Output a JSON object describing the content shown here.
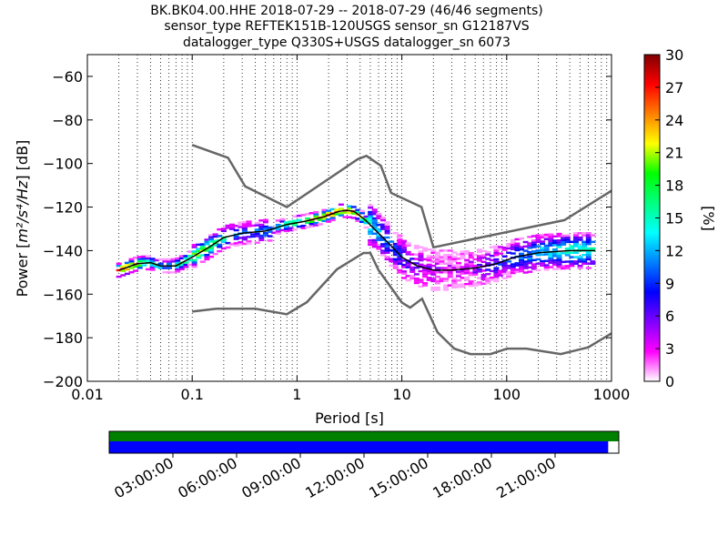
{
  "chart_data": {
    "type": "heatmap",
    "title_lines": [
      "BK.BK04.00.HHE   2018-07-29 -- 2018-07-29  (46/46 segments)",
      "sensor_type REFTEK151B-120USGS sensor_sn G12187VS",
      "datalogger_type Q330S+USGS datalogger_sn 6073"
    ],
    "xlabel": "Period [s]",
    "ylabel_prefix": "Power [",
    "ylabel_unit": "m²/s⁴/Hz",
    "ylabel_suffix": "] [dB]",
    "x_scale": "log",
    "xlim": [
      0.01,
      1000
    ],
    "ylim": [
      -200,
      -50
    ],
    "x_ticks": [
      {
        "value": 0.01,
        "label": "0.01"
      },
      {
        "value": 0.1,
        "label": "0.1"
      },
      {
        "value": 1,
        "label": "1"
      },
      {
        "value": 10,
        "label": "10"
      },
      {
        "value": 100,
        "label": "100"
      },
      {
        "value": 1000,
        "label": "1000"
      }
    ],
    "y_ticks": [
      {
        "value": -60,
        "label": "−60"
      },
      {
        "value": -80,
        "label": "−80"
      },
      {
        "value": -100,
        "label": "−100"
      },
      {
        "value": -120,
        "label": "−120"
      },
      {
        "value": -140,
        "label": "−140"
      },
      {
        "value": -160,
        "label": "−160"
      },
      {
        "value": -180,
        "label": "−180"
      },
      {
        "value": -200,
        "label": "−200"
      }
    ],
    "grid": "vertical dotted",
    "colorbar": {
      "label": "[%]",
      "range": [
        0,
        30
      ],
      "ticks": [
        {
          "value": 0,
          "label": "0"
        },
        {
          "value": 3,
          "label": "3"
        },
        {
          "value": 6,
          "label": "6"
        },
        {
          "value": 9,
          "label": "9"
        },
        {
          "value": 12,
          "label": "12"
        },
        {
          "value": 15,
          "label": "15"
        },
        {
          "value": 18,
          "label": "18"
        },
        {
          "value": 21,
          "label": "21"
        },
        {
          "value": 24,
          "label": "24"
        },
        {
          "value": 27,
          "label": "27"
        },
        {
          "value": 30,
          "label": "30"
        }
      ],
      "colormap": [
        "#ffffff",
        "#ff00ff",
        "#8000ff",
        "#0000ff",
        "#0080ff",
        "#00ffff",
        "#00ff80",
        "#00ff00",
        "#ffff00",
        "#ff8000",
        "#ff0000",
        "#800000"
      ]
    },
    "nhnm": {
      "name": "high noise model",
      "period": [
        0.1,
        0.22,
        0.32,
        0.8,
        3.8,
        4.6,
        6.3,
        7.9,
        15.4,
        20,
        354.8,
        1000
      ],
      "power": [
        -91.5,
        -97.4,
        -110.5,
        -120,
        -98,
        -96.5,
        -101,
        -113.5,
        -120,
        -138.5,
        -126,
        -112.5
      ]
    },
    "nlnm": {
      "name": "low noise model",
      "period": [
        0.1,
        0.17,
        0.4,
        0.8,
        1.24,
        2.4,
        4.3,
        5,
        6,
        10,
        12,
        15.6,
        21.9,
        31.6,
        45,
        70,
        101,
        154,
        328,
        600,
        1000
      ],
      "power": [
        -168,
        -166.7,
        -166.7,
        -169.2,
        -163.7,
        -148.6,
        -141.1,
        -141.1,
        -149,
        -163.8,
        -166.2,
        -162.1,
        -177.5,
        -185,
        -187.5,
        -187.5,
        -185,
        -185,
        -187.5,
        -184.4,
        -178
      ]
    },
    "mean_psd": {
      "name": "mean",
      "period": [
        0.02,
        0.03,
        0.04,
        0.05,
        0.07,
        0.1,
        0.15,
        0.2,
        0.3,
        0.5,
        0.8,
        1.2,
        1.8,
        2.5,
        3,
        3.5,
        4.5,
        6,
        8,
        10,
        14,
        20,
        30,
        50,
        80,
        120,
        200,
        400,
        700
      ],
      "power": [
        -149,
        -146,
        -145.5,
        -147,
        -147,
        -143,
        -138,
        -134,
        -132,
        -131,
        -128,
        -126.5,
        -124.5,
        -122,
        -121.5,
        -122,
        -126,
        -132,
        -138,
        -143,
        -147,
        -149,
        -149,
        -148,
        -146,
        -143,
        -141,
        -140,
        -140
      ]
    },
    "density_cells_percent": [
      {
        "period": 0.025,
        "power": -148,
        "percent": 27
      },
      {
        "period": 0.03,
        "power": -146,
        "percent": 24
      },
      {
        "period": 0.035,
        "power": -145,
        "percent": 18
      },
      {
        "period": 0.045,
        "power": -146,
        "percent": 15
      },
      {
        "period": 0.06,
        "power": -147,
        "percent": 12
      },
      {
        "period": 0.08,
        "power": -145,
        "percent": 18
      },
      {
        "period": 0.12,
        "power": -141,
        "percent": 21
      },
      {
        "period": 0.2,
        "power": -135,
        "percent": 15
      },
      {
        "period": 0.3,
        "power": -131,
        "percent": 9
      },
      {
        "period": 0.6,
        "power": -130,
        "percent": 12
      },
      {
        "period": 1.5,
        "power": -125,
        "percent": 24
      },
      {
        "period": 3,
        "power": -121,
        "percent": 27
      },
      {
        "period": 6,
        "power": -132,
        "percent": 12
      },
      {
        "period": 9,
        "power": -140,
        "percent": 9
      },
      {
        "period": 13,
        "power": -147,
        "percent": 6
      },
      {
        "period": 25,
        "power": -150,
        "percent": 3
      },
      {
        "period": 40,
        "power": -162,
        "percent": 3
      },
      {
        "period": 60,
        "power": -149,
        "percent": 6
      },
      {
        "period": 100,
        "power": -145,
        "percent": 9
      },
      {
        "period": 200,
        "power": -140,
        "percent": 12
      },
      {
        "period": 400,
        "power": -136,
        "percent": 15
      }
    ],
    "timeline": {
      "labels": [
        "03:00:00",
        "06:00:00",
        "09:00:00",
        "12:00:00",
        "15:00:00",
        "18:00:00",
        "21:00:00"
      ],
      "data_coverage_hours": [
        0,
        24
      ],
      "processed_coverage_hours": [
        0,
        23.5
      ],
      "colors": {
        "data": "#008000",
        "processed": "#0000ff"
      }
    }
  }
}
